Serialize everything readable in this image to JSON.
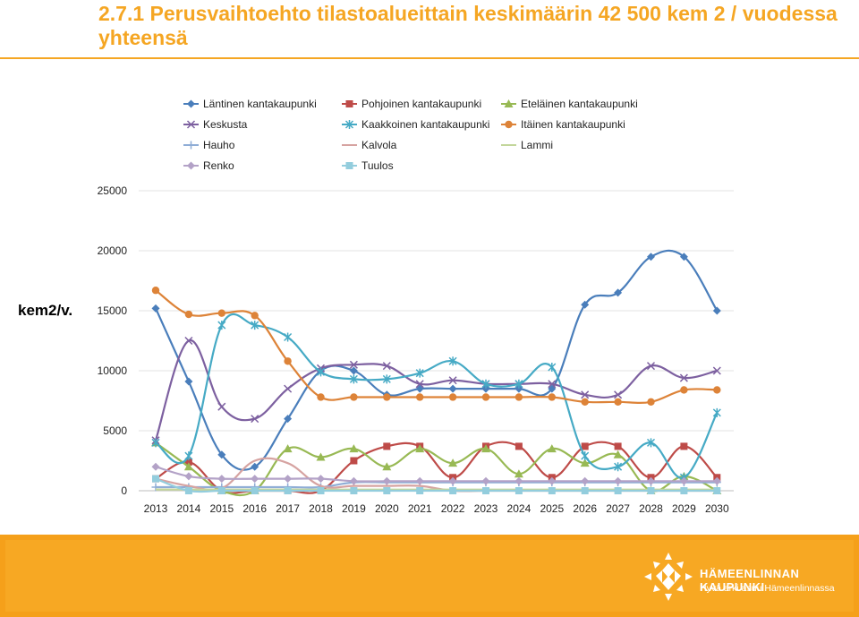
{
  "page": {
    "title": "2.7.1 Perusvaihtoehto tilastoalueittain keskimäärin 42 500 kem 2 / vuodessa yhteensä"
  },
  "footer": {
    "brand_name": "HÄMEENLINNAN KAUPUNKI",
    "brand_tagline": "Hyvä arki asuu Hämeenlinnassa"
  },
  "chart_data": {
    "type": "line",
    "title": "",
    "xlabel": "",
    "ylabel": "kem2/v.",
    "ylim": [
      0,
      25000
    ],
    "y_ticks": [
      "0",
      "5000",
      "10000",
      "15000",
      "20000",
      "25000"
    ],
    "y_tick_values": [
      0,
      5000,
      10000,
      15000,
      20000,
      25000
    ],
    "grid": true,
    "legend_position": "top",
    "categories": [
      "2013",
      "2014",
      "2015",
      "2016",
      "2017",
      "2018",
      "2019",
      "2020",
      "2021",
      "2022",
      "2023",
      "2024",
      "2025",
      "2026",
      "2027",
      "2028",
      "2029",
      "2030"
    ],
    "series": [
      {
        "name": "Läntinen kantakaupunki",
        "color": "#4a7ebb",
        "marker": "diamond",
        "values": [
          15200,
          9100,
          3000,
          2000,
          6000,
          10000,
          10000,
          8000,
          8500,
          8500,
          8500,
          8500,
          8500,
          15500,
          16500,
          19500,
          19500,
          15000
        ]
      },
      {
        "name": "Pohjoinen kantakaupunki",
        "color": "#be4b48",
        "marker": "square",
        "values": [
          1000,
          2400,
          0,
          0,
          0,
          0,
          2500,
          3700,
          3700,
          1100,
          3700,
          3700,
          1100,
          3700,
          3700,
          1100,
          3700,
          1100
        ]
      },
      {
        "name": "Eteläinen kantakaupunki",
        "color": "#98b954",
        "marker": "triangle",
        "values": [
          4000,
          2000,
          0,
          0,
          3500,
          2800,
          3500,
          2000,
          3500,
          2300,
          3500,
          1400,
          3500,
          2300,
          3000,
          0,
          1200,
          0
        ]
      },
      {
        "name": "Keskusta",
        "color": "#7d60a0",
        "marker": "x",
        "values": [
          4200,
          12500,
          7000,
          6000,
          8500,
          10200,
          10500,
          10400,
          8900,
          9200,
          8900,
          8900,
          8900,
          8000,
          8000,
          10400,
          9400,
          10000
        ]
      },
      {
        "name": "Kaakkoinen kantakaupunki",
        "color": "#46aac5",
        "marker": "star",
        "values": [
          4000,
          2900,
          13800,
          13800,
          12800,
          9900,
          9300,
          9300,
          9800,
          10800,
          8900,
          8900,
          10300,
          2900,
          2000,
          4000,
          1100,
          6500
        ]
      },
      {
        "name": "Itäinen kantakaupunki",
        "color": "#dd8338",
        "marker": "circle",
        "values": [
          16700,
          14700,
          14800,
          14600,
          10800,
          7800,
          7800,
          7800,
          7800,
          7800,
          7800,
          7800,
          7800,
          7400,
          7400,
          7400,
          8400,
          8400
        ]
      },
      {
        "name": "Hauho",
        "color": "#8fadd6",
        "marker": "plus",
        "values": [
          300,
          300,
          300,
          300,
          300,
          300,
          700,
          700,
          700,
          700,
          700,
          700,
          700,
          700,
          700,
          700,
          700,
          700
        ]
      },
      {
        "name": "Kalvola",
        "color": "#d6a3a1",
        "marker": "none",
        "values": [
          1000,
          400,
          200,
          2500,
          2300,
          400,
          400,
          400,
          400,
          0,
          0,
          0,
          0,
          0,
          0,
          0,
          0,
          0
        ]
      },
      {
        "name": "Lammi",
        "color": "#c3d69b",
        "marker": "none",
        "values": [
          100,
          100,
          100,
          100,
          100,
          100,
          100,
          100,
          100,
          100,
          100,
          100,
          100,
          100,
          100,
          100,
          100,
          100
        ]
      },
      {
        "name": "Renko",
        "color": "#b3a2c7",
        "marker": "diamond",
        "values": [
          2000,
          1200,
          1000,
          1000,
          1000,
          1000,
          800,
          800,
          800,
          800,
          800,
          800,
          800,
          800,
          800,
          800,
          800,
          800
        ]
      },
      {
        "name": "Tuulos",
        "color": "#93cddd",
        "marker": "square",
        "values": [
          1000,
          0,
          0,
          0,
          0,
          0,
          0,
          0,
          0,
          0,
          0,
          0,
          0,
          0,
          0,
          0,
          0,
          0
        ]
      }
    ]
  }
}
